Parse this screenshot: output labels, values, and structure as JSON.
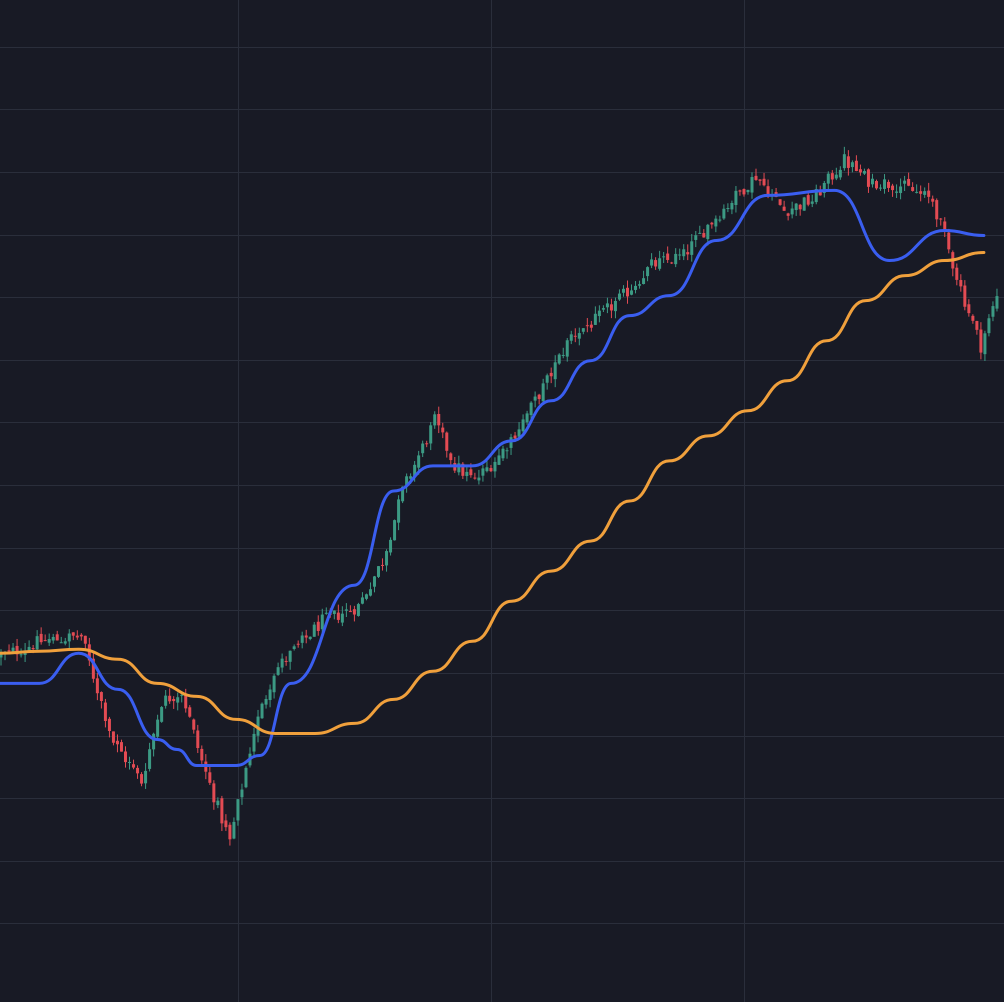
{
  "colors": {
    "background": "#181a25",
    "grid": "#2a2e3b",
    "candle_up": "#3c9a84",
    "candle_down": "#e34b53",
    "ma_fast": "#3a5ef0",
    "ma_slow": "#f0a03c"
  },
  "chart_data": {
    "type": "candlestick",
    "grid": true,
    "x_grid_count": 4,
    "y_grid_count": 16,
    "ylim": [
      0,
      1000
    ],
    "candle_count": 150,
    "ohlc_anchors": [
      [
        0,
        345
      ],
      [
        10,
        360
      ],
      [
        20,
        365
      ],
      [
        28,
        260
      ],
      [
        35,
        220
      ],
      [
        40,
        300
      ],
      [
        45,
        310
      ],
      [
        50,
        240
      ],
      [
        57,
        160
      ],
      [
        63,
        270
      ],
      [
        68,
        330
      ],
      [
        80,
        380
      ],
      [
        89,
        395
      ],
      [
        95,
        440
      ],
      [
        100,
        510
      ],
      [
        104,
        545
      ],
      [
        108,
        580
      ],
      [
        113,
        535
      ],
      [
        118,
        520
      ],
      [
        124,
        545
      ],
      [
        130,
        580
      ],
      [
        136,
        620
      ],
      [
        142,
        665
      ],
      [
        148,
        680
      ],
      [
        155,
        705
      ],
      [
        162,
        735
      ],
      [
        170,
        745
      ],
      [
        176,
        775
      ],
      [
        182,
        800
      ],
      [
        188,
        825
      ],
      [
        195,
        790
      ],
      [
        202,
        800
      ],
      [
        210,
        840
      ],
      [
        216,
        820
      ],
      [
        224,
        815
      ],
      [
        232,
        800
      ],
      [
        240,
        700
      ],
      [
        244,
        655
      ],
      [
        248,
        705
      ]
    ],
    "series": [
      {
        "x": [
          0,
          10,
          20,
          30,
          40,
          45,
          50,
          60,
          66,
          74,
          90,
          100,
          110,
          120,
          130,
          140,
          150,
          160,
          170,
          182,
          195,
          212,
          226,
          240,
          250
        ],
        "values": [
          318,
          318,
          348,
          312,
          262,
          252,
          236,
          236,
          246,
          318,
          416,
          510,
          535,
          535,
          560,
          600,
          640,
          685,
          705,
          760,
          805,
          810,
          740,
          770,
          765
        ]
      },
      {
        "x": [
          0,
          10,
          20,
          30,
          40,
          50,
          60,
          70,
          80,
          90,
          100,
          110,
          120,
          130,
          140,
          150,
          160,
          170,
          180,
          190,
          200,
          210,
          220,
          230,
          240,
          250
        ],
        "values": [
          348,
          350,
          352,
          342,
          318,
          305,
          282,
          268,
          268,
          278,
          302,
          330,
          360,
          400,
          430,
          460,
          500,
          540,
          565,
          590,
          620,
          660,
          700,
          725,
          740,
          748
        ]
      }
    ]
  }
}
